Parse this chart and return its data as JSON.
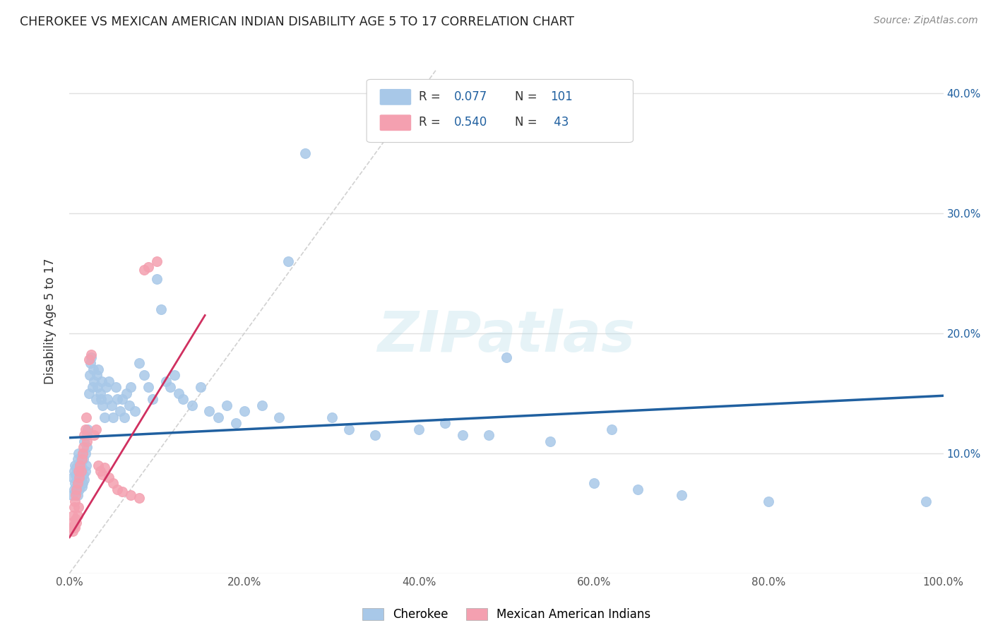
{
  "title": "CHEROKEE VS MEXICAN AMERICAN INDIAN DISABILITY AGE 5 TO 17 CORRELATION CHART",
  "source": "Source: ZipAtlas.com",
  "ylabel": "Disability Age 5 to 17",
  "xlim": [
    0,
    1.0
  ],
  "ylim": [
    0,
    0.42
  ],
  "xticks": [
    0.0,
    0.2,
    0.4,
    0.6,
    0.8,
    1.0
  ],
  "xticklabels": [
    "0.0%",
    "20.0%",
    "40.0%",
    "60.0%",
    "80.0%",
    "100.0%"
  ],
  "yticks": [
    0.0,
    0.1,
    0.2,
    0.3,
    0.4
  ],
  "yticklabels_right": [
    "",
    "10.0%",
    "20.0%",
    "30.0%",
    "40.0%"
  ],
  "legend_R1": "0.077",
  "legend_N1": "101",
  "legend_R2": "0.540",
  "legend_N2": "43",
  "blue_color": "#a8c8e8",
  "pink_color": "#f4a0b0",
  "trendline_blue": "#2060a0",
  "trendline_pink": "#d03060",
  "trendline_gray": "#cccccc",
  "watermark": "ZIPatlas",
  "blue_scatter_x": [
    0.003,
    0.004,
    0.005,
    0.005,
    0.006,
    0.006,
    0.007,
    0.007,
    0.008,
    0.008,
    0.009,
    0.009,
    0.01,
    0.01,
    0.011,
    0.011,
    0.012,
    0.012,
    0.013,
    0.013,
    0.014,
    0.014,
    0.015,
    0.015,
    0.016,
    0.016,
    0.017,
    0.017,
    0.018,
    0.018,
    0.019,
    0.02,
    0.02,
    0.021,
    0.022,
    0.023,
    0.024,
    0.025,
    0.026,
    0.027,
    0.028,
    0.03,
    0.031,
    0.032,
    0.033,
    0.035,
    0.036,
    0.037,
    0.038,
    0.04,
    0.042,
    0.043,
    0.045,
    0.048,
    0.05,
    0.053,
    0.055,
    0.058,
    0.06,
    0.063,
    0.065,
    0.068,
    0.07,
    0.075,
    0.08,
    0.085,
    0.09,
    0.095,
    0.1,
    0.105,
    0.11,
    0.115,
    0.12,
    0.125,
    0.13,
    0.14,
    0.15,
    0.16,
    0.17,
    0.18,
    0.19,
    0.2,
    0.22,
    0.24,
    0.25,
    0.27,
    0.3,
    0.32,
    0.35,
    0.4,
    0.43,
    0.45,
    0.48,
    0.5,
    0.55,
    0.6,
    0.62,
    0.65,
    0.7,
    0.8,
    0.98
  ],
  "blue_scatter_y": [
    0.065,
    0.08,
    0.07,
    0.085,
    0.075,
    0.09,
    0.068,
    0.082,
    0.072,
    0.088,
    0.065,
    0.095,
    0.075,
    0.1,
    0.07,
    0.085,
    0.078,
    0.092,
    0.08,
    0.095,
    0.072,
    0.088,
    0.075,
    0.1,
    0.082,
    0.095,
    0.078,
    0.11,
    0.085,
    0.1,
    0.09,
    0.115,
    0.105,
    0.12,
    0.15,
    0.165,
    0.175,
    0.18,
    0.155,
    0.17,
    0.16,
    0.145,
    0.165,
    0.155,
    0.17,
    0.15,
    0.145,
    0.16,
    0.14,
    0.13,
    0.155,
    0.145,
    0.16,
    0.14,
    0.13,
    0.155,
    0.145,
    0.135,
    0.145,
    0.13,
    0.15,
    0.14,
    0.155,
    0.135,
    0.175,
    0.165,
    0.155,
    0.145,
    0.245,
    0.22,
    0.16,
    0.155,
    0.165,
    0.15,
    0.145,
    0.14,
    0.155,
    0.135,
    0.13,
    0.14,
    0.125,
    0.135,
    0.14,
    0.13,
    0.26,
    0.35,
    0.13,
    0.12,
    0.115,
    0.12,
    0.125,
    0.115,
    0.115,
    0.18,
    0.11,
    0.075,
    0.12,
    0.07,
    0.065,
    0.06,
    0.06
  ],
  "pink_scatter_x": [
    0.002,
    0.003,
    0.004,
    0.004,
    0.005,
    0.005,
    0.006,
    0.006,
    0.007,
    0.007,
    0.008,
    0.008,
    0.009,
    0.009,
    0.01,
    0.01,
    0.011,
    0.012,
    0.013,
    0.014,
    0.015,
    0.016,
    0.017,
    0.018,
    0.019,
    0.02,
    0.022,
    0.025,
    0.028,
    0.03,
    0.033,
    0.035,
    0.038,
    0.04,
    0.045,
    0.05,
    0.055,
    0.06,
    0.07,
    0.08,
    0.085,
    0.09,
    0.1
  ],
  "pink_scatter_y": [
    0.038,
    0.042,
    0.035,
    0.048,
    0.04,
    0.055,
    0.038,
    0.06,
    0.045,
    0.065,
    0.042,
    0.07,
    0.048,
    0.075,
    0.055,
    0.085,
    0.08,
    0.09,
    0.085,
    0.095,
    0.1,
    0.105,
    0.115,
    0.12,
    0.13,
    0.11,
    0.178,
    0.182,
    0.115,
    0.12,
    0.09,
    0.085,
    0.082,
    0.088,
    0.08,
    0.075,
    0.07,
    0.068,
    0.065,
    0.063,
    0.253,
    0.255,
    0.26
  ],
  "background_color": "#ffffff",
  "grid_color": "#e0e0e0"
}
